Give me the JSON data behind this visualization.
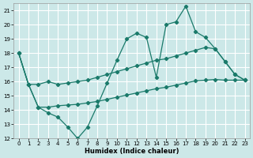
{
  "xlabel": "Humidex (Indice chaleur)",
  "background_color": "#cce8e8",
  "grid_color": "#ffffff",
  "line_color": "#1a7a6a",
  "xlim": [
    -0.5,
    23.5
  ],
  "ylim": [
    12,
    21.5
  ],
  "yticks": [
    12,
    13,
    14,
    15,
    16,
    17,
    18,
    19,
    20,
    21
  ],
  "xticks": [
    0,
    1,
    2,
    3,
    4,
    5,
    6,
    7,
    8,
    9,
    10,
    11,
    12,
    13,
    14,
    15,
    16,
    17,
    18,
    19,
    20,
    21,
    22,
    23
  ],
  "line1_x": [
    0,
    1,
    2,
    3,
    4,
    5,
    6,
    7,
    8,
    9,
    10,
    11,
    12,
    13,
    14,
    15,
    16,
    17,
    18,
    19,
    20,
    21,
    22,
    23
  ],
  "line1_y": [
    18.0,
    15.8,
    14.2,
    13.8,
    13.5,
    12.8,
    12.0,
    12.8,
    14.3,
    15.9,
    17.5,
    19.0,
    19.4,
    19.1,
    16.3,
    20.0,
    20.2,
    21.3,
    19.5,
    19.1,
    18.3,
    17.4,
    16.5,
    16.1
  ],
  "line2_x": [
    0,
    1,
    2,
    3,
    4,
    5,
    6,
    7,
    8,
    9,
    10,
    11,
    12,
    13,
    14,
    15,
    16,
    17,
    18,
    19,
    20,
    21,
    22,
    23
  ],
  "line2_y": [
    18.0,
    15.8,
    15.8,
    16.0,
    15.8,
    15.9,
    16.0,
    16.1,
    16.3,
    16.5,
    16.7,
    16.9,
    17.1,
    17.3,
    17.5,
    17.6,
    17.8,
    18.0,
    18.2,
    18.4,
    18.3,
    17.4,
    16.5,
    16.1
  ],
  "line3_x": [
    0,
    1,
    2,
    3,
    4,
    5,
    6,
    7,
    8,
    9,
    10,
    11,
    12,
    13,
    14,
    15,
    16,
    17,
    18,
    19,
    20,
    21,
    22,
    23
  ],
  "line3_y": [
    18.0,
    15.8,
    14.2,
    14.2,
    14.3,
    14.35,
    14.4,
    14.5,
    14.6,
    14.75,
    14.9,
    15.05,
    15.2,
    15.35,
    15.5,
    15.6,
    15.75,
    15.9,
    16.05,
    16.1,
    16.15,
    16.1,
    16.1,
    16.1
  ]
}
